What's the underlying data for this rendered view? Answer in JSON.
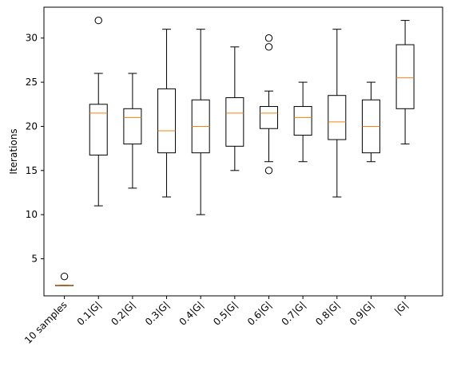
{
  "chart_data": {
    "type": "box",
    "title": "",
    "xlabel": "",
    "ylabel": "Iterations",
    "ylim": [
      0.8,
      33.5
    ],
    "yticks": [
      5,
      10,
      15,
      20,
      25,
      30
    ],
    "grid": false,
    "legend": "none",
    "colors": {
      "box": "#000000",
      "median": "#ff7f0e",
      "outlier": "#000000"
    },
    "categories": [
      "10 samples",
      "0.1|G|",
      "0.2|G|",
      "0.3|G|",
      "0.4|G|",
      "0.5|G|",
      "0.6|G|",
      "0.7|G|",
      "0.8|G|",
      "0.9|G|",
      "|G|"
    ],
    "boxes": [
      {
        "whisker_low": 2,
        "q1": 2,
        "median": 2,
        "q3": 2,
        "whisker_high": 2,
        "outliers": [
          3
        ]
      },
      {
        "whisker_low": 11,
        "q1": 16.75,
        "median": 21.5,
        "q3": 22.5,
        "whisker_high": 26,
        "outliers": [
          32
        ]
      },
      {
        "whisker_low": 13,
        "q1": 18,
        "median": 21,
        "q3": 22,
        "whisker_high": 26,
        "outliers": []
      },
      {
        "whisker_low": 12,
        "q1": 17,
        "median": 19.5,
        "q3": 24.25,
        "whisker_high": 31,
        "outliers": []
      },
      {
        "whisker_low": 10,
        "q1": 17,
        "median": 20,
        "q3": 23,
        "whisker_high": 31,
        "outliers": []
      },
      {
        "whisker_low": 15,
        "q1": 17.75,
        "median": 21.5,
        "q3": 23.25,
        "whisker_high": 29,
        "outliers": []
      },
      {
        "whisker_low": 16,
        "q1": 19.75,
        "median": 21.5,
        "q3": 22.25,
        "whisker_high": 24,
        "outliers": [
          15,
          29,
          30
        ]
      },
      {
        "whisker_low": 16,
        "q1": 19,
        "median": 21,
        "q3": 22.25,
        "whisker_high": 25,
        "outliers": []
      },
      {
        "whisker_low": 12,
        "q1": 18.5,
        "median": 20.5,
        "q3": 23.5,
        "whisker_high": 31,
        "outliers": []
      },
      {
        "whisker_low": 16,
        "q1": 17,
        "median": 20,
        "q3": 23,
        "whisker_high": 25,
        "outliers": []
      },
      {
        "whisker_low": 18,
        "q1": 22,
        "median": 25.5,
        "q3": 29.25,
        "whisker_high": 32,
        "outliers": []
      }
    ]
  }
}
